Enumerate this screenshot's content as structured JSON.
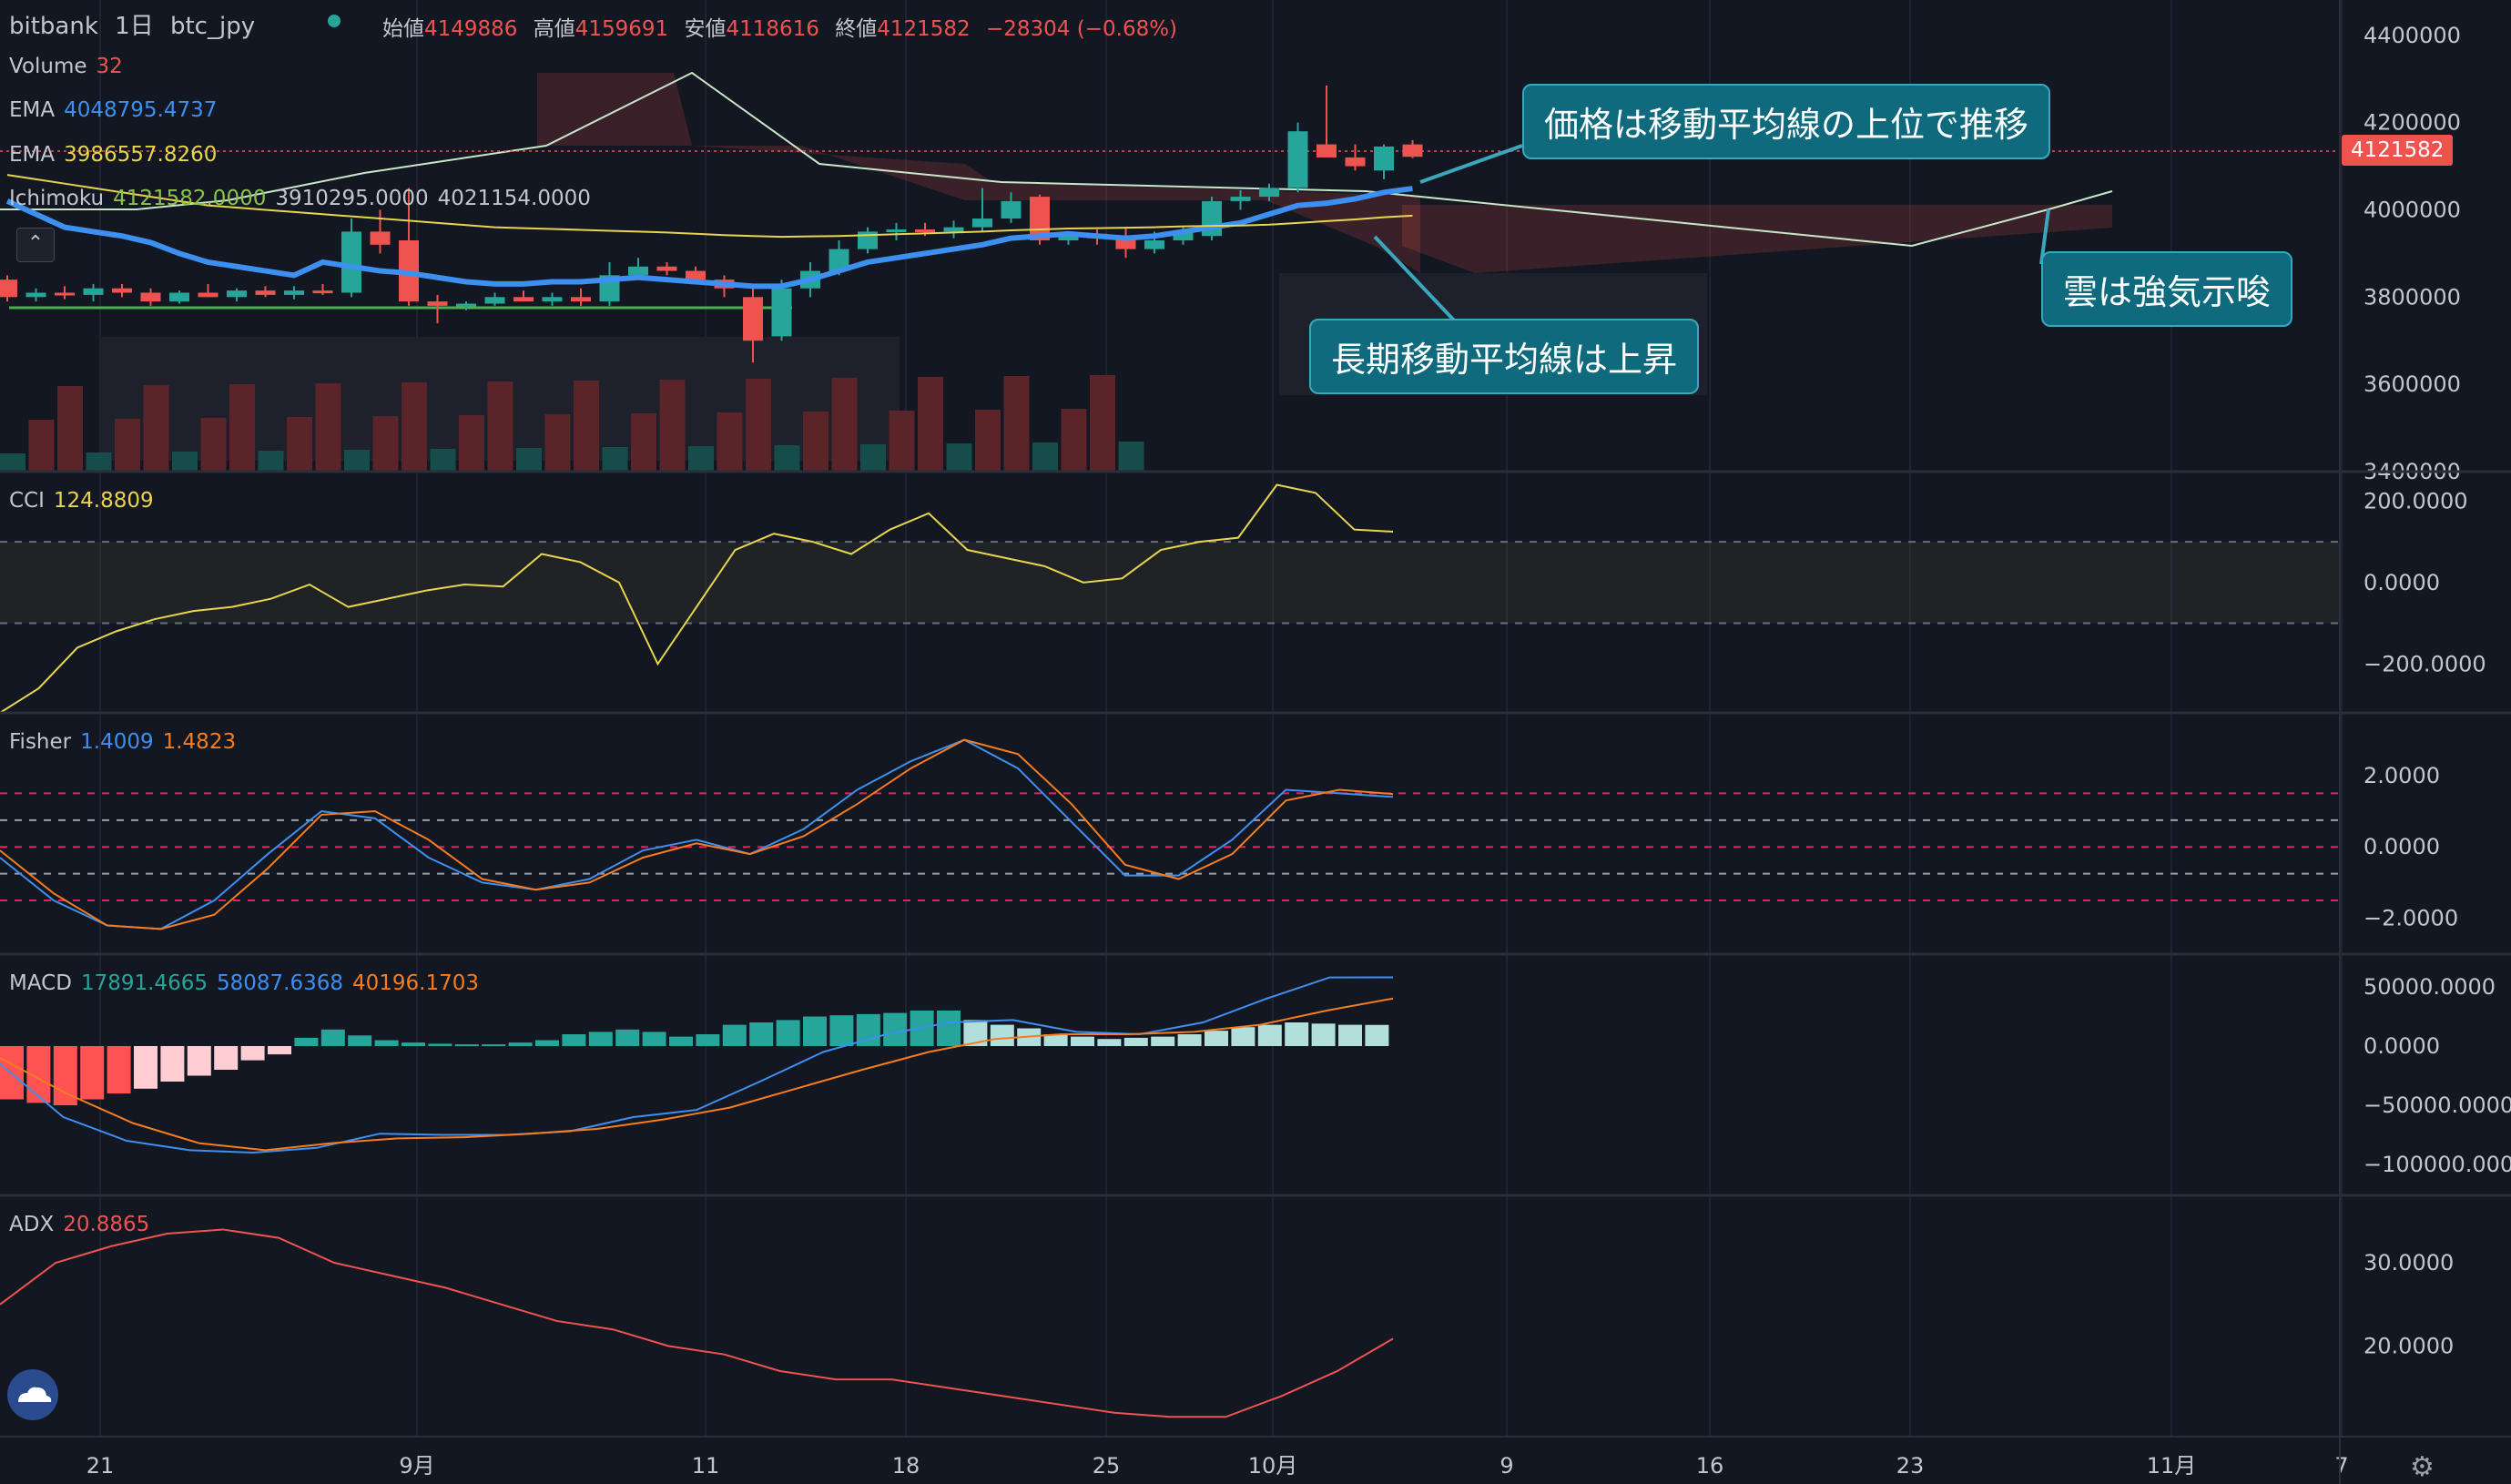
{
  "header": {
    "exchange": "bitbank",
    "interval": "1日",
    "symbol": "btc_jpy",
    "open_label": "始値",
    "open": "4149886",
    "high_label": "高値",
    "high": "4159691",
    "low_label": "安値",
    "low": "4118616",
    "close_label": "終値",
    "close": "4121582",
    "change": "−28304 (−0.68%)"
  },
  "legends": {
    "volume": {
      "name": "Volume",
      "value": "32"
    },
    "ema1": {
      "name": "EMA",
      "value": "4048795.4737"
    },
    "ema2": {
      "name": "EMA",
      "value": "3986557.8260"
    },
    "ichimoku": {
      "name": "Ichimoku",
      "v1": "4121582.0000",
      "v2": "3910295.0000",
      "v3": "4021154.0000"
    },
    "cci": {
      "name": "CCI",
      "value": "124.8809"
    },
    "fisher": {
      "name": "Fisher",
      "v1": "1.4009",
      "v2": "1.4823"
    },
    "macd": {
      "name": "MACD",
      "v1": "17891.4665",
      "v2": "58087.6368",
      "v3": "40196.1703"
    },
    "adx": {
      "name": "ADX",
      "value": "20.8865"
    }
  },
  "callouts": {
    "above_ma": "価格は移動平均線の上位で推移",
    "cloud": "雲は強気示唆",
    "long_ma": "長期移動平均線は上昇"
  },
  "price_tag": "4121582",
  "colors": {
    "up": "#26a69a",
    "down": "#ef5350",
    "ema_fast": "#3d8ff0",
    "ema_slow": "#e8d44d",
    "cci": "#e8d44d",
    "fisher1": "#3d8ff0",
    "fisher2": "#f57c1f",
    "adx": "#ef5350",
    "callout_bg": "#0f6a7e"
  },
  "icons": {
    "collapse": "chevron-up-icon",
    "logo": "tradingview-cloud-icon",
    "settings": "gear-icon"
  },
  "chart_data": [
    {
      "type": "candlestick",
      "title": "bitbank 1日 btc_jpy",
      "x_ticks": [
        "21",
        "9月",
        "11",
        "18",
        "25",
        "10月",
        "9",
        "16",
        "23",
        "11月",
        "7"
      ],
      "y_ticks": [
        "4400000",
        "4200000",
        "4000000",
        "3800000",
        "3600000",
        "3400000"
      ],
      "ylim": [
        3400000,
        4460000
      ],
      "candles": [
        [
          3840000,
          3850000,
          3790000,
          3800000
        ],
        [
          3800000,
          3820000,
          3790000,
          3810000
        ],
        [
          3810000,
          3825000,
          3795000,
          3805000
        ],
        [
          3805000,
          3830000,
          3790000,
          3820000
        ],
        [
          3820000,
          3830000,
          3800000,
          3810000
        ],
        [
          3810000,
          3820000,
          3780000,
          3790000
        ],
        [
          3790000,
          3815000,
          3785000,
          3810000
        ],
        [
          3810000,
          3830000,
          3800000,
          3800000
        ],
        [
          3800000,
          3820000,
          3790000,
          3815000
        ],
        [
          3815000,
          3825000,
          3800000,
          3805000
        ],
        [
          3805000,
          3825000,
          3795000,
          3815000
        ],
        [
          3815000,
          3830000,
          3805000,
          3810000
        ],
        [
          3810000,
          3980000,
          3800000,
          3950000
        ],
        [
          3950000,
          4000000,
          3900000,
          3920000
        ],
        [
          3930000,
          4050000,
          3780000,
          3790000
        ],
        [
          3790000,
          3805000,
          3740000,
          3780000
        ],
        [
          3780000,
          3790000,
          3770000,
          3785000
        ],
        [
          3785000,
          3810000,
          3780000,
          3800000
        ],
        [
          3800000,
          3815000,
          3790000,
          3790000
        ],
        [
          3790000,
          3810000,
          3780000,
          3800000
        ],
        [
          3800000,
          3820000,
          3780000,
          3790000
        ],
        [
          3790000,
          3880000,
          3780000,
          3850000
        ],
        [
          3850000,
          3890000,
          3840000,
          3870000
        ],
        [
          3870000,
          3880000,
          3850000,
          3860000
        ],
        [
          3860000,
          3870000,
          3830000,
          3840000
        ],
        [
          3840000,
          3850000,
          3800000,
          3820000
        ],
        [
          3800000,
          3820000,
          3650000,
          3700000
        ],
        [
          3710000,
          3840000,
          3700000,
          3820000
        ],
        [
          3820000,
          3880000,
          3800000,
          3860000
        ],
        [
          3860000,
          3930000,
          3850000,
          3910000
        ],
        [
          3910000,
          3960000,
          3900000,
          3950000
        ],
        [
          3950000,
          3970000,
          3930000,
          3955000
        ],
        [
          3955000,
          3970000,
          3940000,
          3950000
        ],
        [
          3950000,
          3975000,
          3935000,
          3960000
        ],
        [
          3960000,
          4050000,
          3950000,
          3980000
        ],
        [
          3980000,
          4040000,
          3970000,
          4020000
        ],
        [
          4030000,
          4035000,
          3920000,
          3930000
        ],
        [
          3930000,
          3950000,
          3920000,
          3945000
        ],
        [
          3945000,
          3955000,
          3920000,
          3935000
        ],
        [
          3940000,
          3960000,
          3890000,
          3910000
        ],
        [
          3910000,
          3950000,
          3900000,
          3930000
        ],
        [
          3930000,
          3960000,
          3920000,
          3950000
        ],
        [
          3940000,
          4030000,
          3930000,
          4020000
        ],
        [
          4020000,
          4045000,
          4000000,
          4030000
        ],
        [
          4030000,
          4060000,
          4020000,
          4050000
        ],
        [
          4050000,
          4200000,
          4040000,
          4180000
        ],
        [
          4150000,
          4285000,
          4120000,
          4120000
        ],
        [
          4120000,
          4150000,
          4090000,
          4100000
        ],
        [
          4090000,
          4150000,
          4070000,
          4145000
        ],
        [
          4149886,
          4159691,
          4118616,
          4121582
        ]
      ],
      "series": [
        {
          "name": "EMA",
          "values": [
            4020000,
            3990000,
            3960000,
            3950000,
            3940000,
            3925000,
            3900000,
            3880000,
            3870000,
            3860000,
            3850000,
            3880000,
            3870000,
            3860000,
            3855000,
            3845000,
            3835000,
            3830000,
            3830000,
            3835000,
            3835000,
            3840000,
            3845000,
            3840000,
            3835000,
            3830000,
            3825000,
            3825000,
            3840000,
            3860000,
            3880000,
            3890000,
            3900000,
            3910000,
            3920000,
            3935000,
            3940000,
            3945000,
            3940000,
            3935000,
            3940000,
            3950000,
            3960000,
            3970000,
            3990000,
            4010000,
            4015000,
            4025000,
            4040000,
            4048795
          ]
        },
        {
          "name": "EMA",
          "values": [
            4080000,
            4070000,
            4060000,
            4050000,
            4040000,
            4030000,
            4020000,
            4010000,
            4005000,
            4000000,
            3995000,
            3990000,
            3985000,
            3980000,
            3975000,
            3970000,
            3965000,
            3960000,
            3958000,
            3956000,
            3954000,
            3952000,
            3950000,
            3948000,
            3945000,
            3942000,
            3940000,
            3938000,
            3939000,
            3940000,
            3942000,
            3944000,
            3946000,
            3948000,
            3950000,
            3953000,
            3955000,
            3957000,
            3958000,
            3959000,
            3960000,
            3962000,
            3963000,
            3964000,
            3966000,
            3970000,
            3974000,
            3978000,
            3983000,
            3986558
          ]
        }
      ]
    },
    {
      "type": "line",
      "title": "CCI",
      "y_ticks": [
        "200.0000",
        "0.0000",
        "−200.0000"
      ],
      "ylim": [
        -300,
        250
      ],
      "series": [
        {
          "name": "CCI",
          "values": [
            -320,
            -260,
            -160,
            -120,
            -90,
            -70,
            -60,
            -40,
            -5,
            -60,
            -40,
            -20,
            -5,
            -10,
            70,
            50,
            0,
            -200,
            -60,
            80,
            120,
            100,
            70,
            130,
            170,
            80,
            60,
            40,
            0,
            10,
            80,
            100,
            110,
            240,
            220,
            130,
            124.8809
          ]
        }
      ]
    },
    {
      "type": "line",
      "title": "Fisher",
      "y_ticks": [
        "2.0000",
        "0.0000",
        "−2.0000"
      ],
      "ylim": [
        -2.8,
        3.5
      ],
      "series": [
        {
          "name": "Fisher",
          "values": [
            -0.3,
            -1.5,
            -2.2,
            -2.3,
            -1.5,
            -0.2,
            1.0,
            0.8,
            -0.3,
            -1.0,
            -1.2,
            -0.9,
            -0.1,
            0.2,
            -0.2,
            0.5,
            1.6,
            2.4,
            3.0,
            2.2,
            0.7,
            -0.8,
            -0.8,
            0.2,
            1.6,
            1.5,
            1.4009
          ]
        },
        {
          "name": "Fisher",
          "values": [
            -0.1,
            -1.3,
            -2.2,
            -2.3,
            -1.9,
            -0.6,
            0.9,
            1.0,
            0.2,
            -0.9,
            -1.2,
            -1.0,
            -0.3,
            0.1,
            -0.2,
            0.3,
            1.2,
            2.2,
            3.0,
            2.6,
            1.2,
            -0.5,
            -0.9,
            -0.2,
            1.3,
            1.6,
            1.4823
          ]
        }
      ]
    },
    {
      "type": "bar",
      "title": "MACD",
      "y_ticks": [
        "50000.0000",
        "0.0000",
        "−50000.0000",
        "−100000.0000"
      ],
      "ylim": [
        -120000,
        70000
      ],
      "values": [
        -45000,
        -48000,
        -50000,
        -45000,
        -40000,
        -36000,
        -30000,
        -25000,
        -20000,
        -12000,
        -7000,
        7000,
        14000,
        9000,
        5000,
        3000,
        2000,
        1500,
        1500,
        3000,
        5000,
        10000,
        12000,
        14000,
        12000,
        8000,
        10000,
        18000,
        20000,
        22000,
        25000,
        26000,
        27000,
        28000,
        30000,
        30000,
        22000,
        18000,
        15000,
        10000,
        8000,
        6000,
        7000,
        8000,
        10000,
        13000,
        16000,
        18000,
        20000,
        19000,
        18000,
        17891
      ],
      "series": [
        {
          "name": "MACD",
          "values": [
            -15000,
            -60000,
            -80000,
            -88000,
            -90000,
            -86000,
            -74000,
            -75000,
            -75000,
            -72000,
            -60000,
            -54000,
            -30000,
            -5000,
            10000,
            20000,
            22000,
            12000,
            10000,
            20000,
            40000,
            58000,
            58087
          ]
        },
        {
          "name": "Signal",
          "values": [
            -10000,
            -40000,
            -65000,
            -82000,
            -88000,
            -82000,
            -78000,
            -77000,
            -74000,
            -70000,
            -62000,
            -52000,
            -36000,
            -20000,
            -5000,
            6000,
            10000,
            10000,
            12000,
            18000,
            30000,
            40196
          ]
        }
      ]
    },
    {
      "type": "line",
      "title": "ADX",
      "y_ticks": [
        "30.0000",
        "20.0000"
      ],
      "ylim": [
        10,
        37
      ],
      "series": [
        {
          "name": "ADX",
          "values": [
            25,
            30,
            32,
            33.5,
            34,
            33,
            30,
            28.5,
            27,
            25,
            23,
            22,
            20,
            19,
            17,
            16,
            16,
            15,
            14,
            13,
            12,
            11.5,
            11.5,
            14,
            17,
            20.8865
          ]
        }
      ]
    }
  ]
}
